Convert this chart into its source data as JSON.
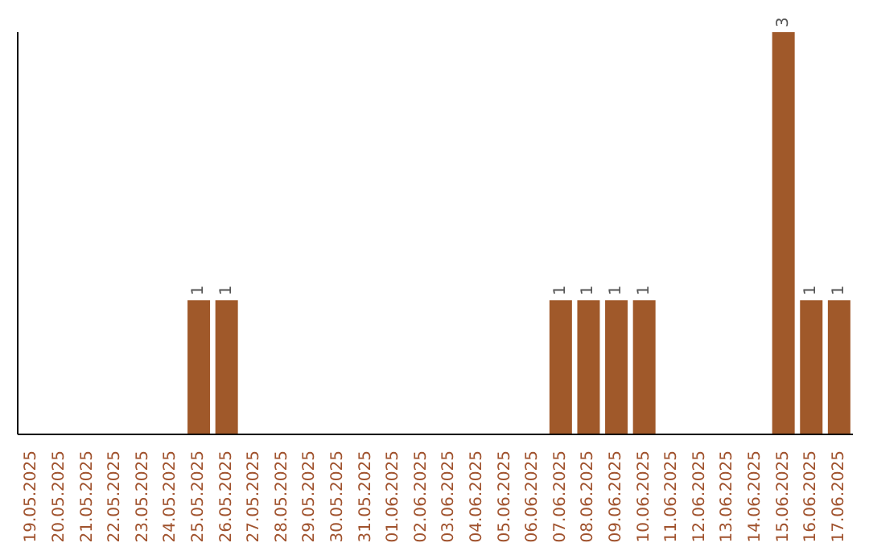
{
  "chart_data": {
    "type": "bar",
    "categories": [
      "19.05.2025",
      "20.05.2025",
      "21.05.2025",
      "22.05.2025",
      "23.05.2025",
      "24.05.2025",
      "25.05.2025",
      "26.05.2025",
      "27.05.2025",
      "28.05.2025",
      "29.05.2025",
      "30.05.2025",
      "31.05.2025",
      "01.06.2025",
      "02.06.2025",
      "03.06.2025",
      "04.06.2025",
      "05.06.2025",
      "06.06.2025",
      "07.06.2025",
      "08.06.2025",
      "09.06.2025",
      "10.06.2025",
      "11.06.2025",
      "12.06.2025",
      "13.06.2025",
      "14.06.2025",
      "15.06.2025",
      "16.06.2025",
      "17.06.2025"
    ],
    "values": [
      0,
      0,
      0,
      0,
      0,
      0,
      1,
      1,
      0,
      0,
      0,
      0,
      0,
      0,
      0,
      0,
      0,
      0,
      0,
      1,
      1,
      1,
      1,
      0,
      0,
      0,
      0,
      3,
      1,
      1
    ],
    "value_labels": [
      null,
      null,
      null,
      null,
      null,
      null,
      "1",
      "1",
      null,
      null,
      null,
      null,
      null,
      null,
      null,
      null,
      null,
      null,
      null,
      "1",
      "1",
      "1",
      "1",
      null,
      null,
      null,
      null,
      "3",
      "1",
      "1"
    ],
    "color": "#a0592a",
    "grid": false,
    "legend": false
  }
}
